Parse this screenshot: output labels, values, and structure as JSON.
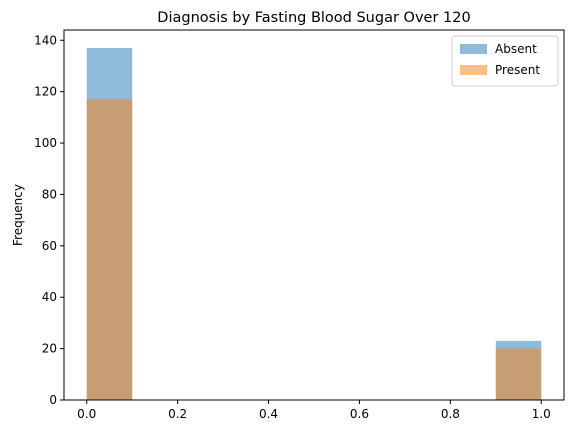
{
  "chart_data": {
    "type": "bar",
    "title": "Diagnosis by Fasting Blood Sugar Over 120",
    "xlabel": "",
    "ylabel": "Frequency",
    "xlim": [
      -0.05,
      1.05
    ],
    "ylim": [
      0,
      144
    ],
    "x_ticks": [
      "0.0",
      "0.2",
      "0.4",
      "0.6",
      "0.8",
      "1.0"
    ],
    "y_ticks": [
      "0",
      "20",
      "40",
      "60",
      "80",
      "100",
      "120",
      "140"
    ],
    "legend_position": "top-right",
    "grid": false,
    "bin_edges": [
      0.0,
      0.1,
      0.2,
      0.3,
      0.4,
      0.5,
      0.6,
      0.7,
      0.8,
      0.9,
      1.0
    ],
    "series": [
      {
        "name": "Absent",
        "color": "#1f77b4",
        "opacity": 0.5,
        "values": [
          137,
          0,
          0,
          0,
          0,
          0,
          0,
          0,
          0,
          23
        ]
      },
      {
        "name": "Present",
        "color": "#ff7f0e",
        "opacity": 0.5,
        "values": [
          117,
          0,
          0,
          0,
          0,
          0,
          0,
          0,
          0,
          20
        ]
      }
    ]
  }
}
